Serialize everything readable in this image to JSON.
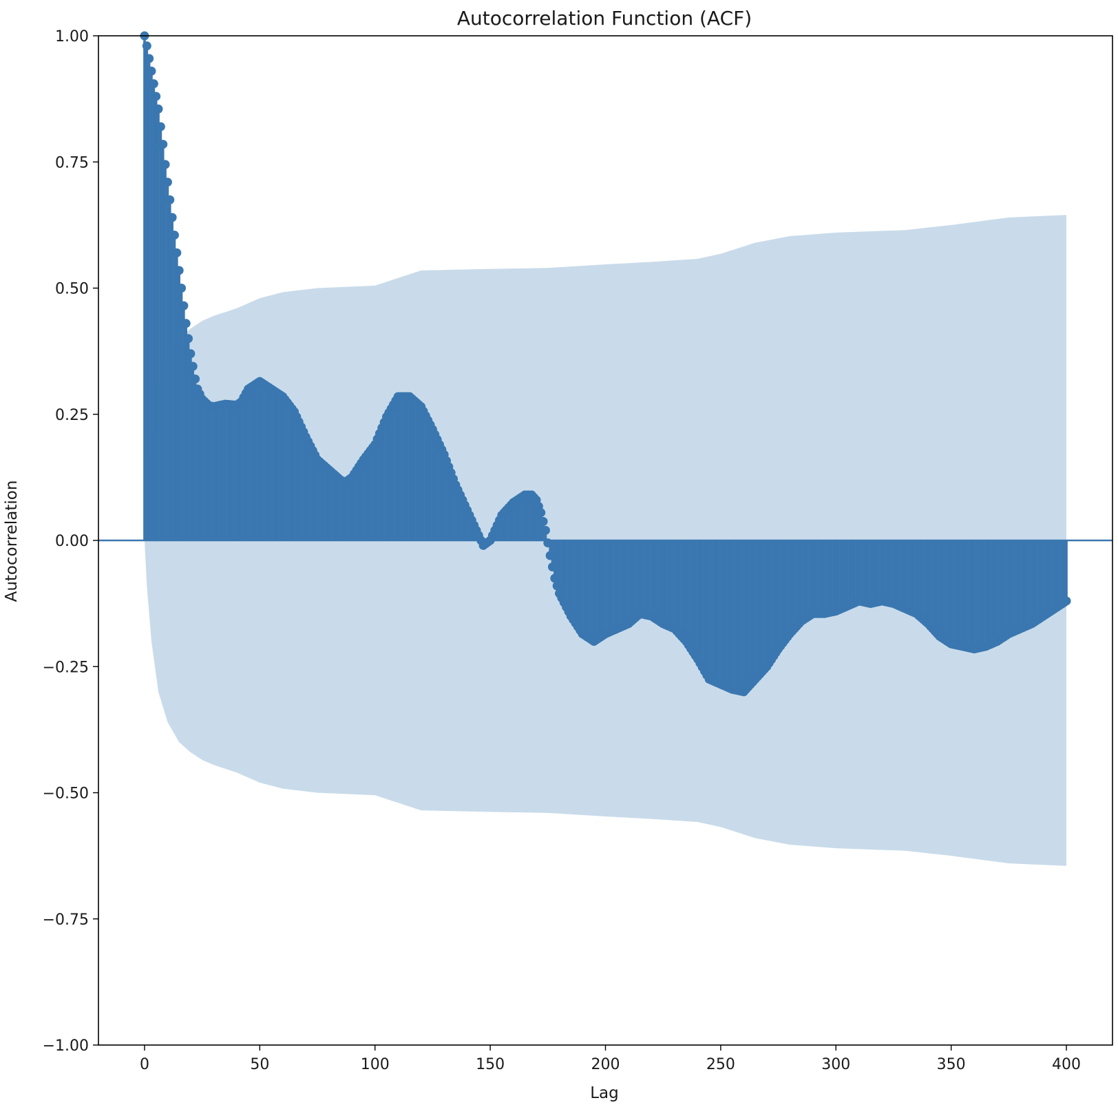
{
  "chart_data": {
    "type": "stem",
    "title": "Autocorrelation Function (ACF)",
    "xlabel": "Lag",
    "ylabel": "Autocorrelation",
    "xlim": [
      -20,
      420
    ],
    "ylim": [
      -1.0,
      1.0
    ],
    "xticks": [
      0,
      50,
      100,
      150,
      200,
      250,
      300,
      350,
      400
    ],
    "yticks": [
      1.0,
      0.75,
      0.5,
      0.25,
      0.0,
      -0.25,
      -0.5,
      -0.75,
      -1.0
    ],
    "xtick_labels": [
      "0",
      "50",
      "100",
      "150",
      "200",
      "250",
      "300",
      "350",
      "400"
    ],
    "ytick_labels": [
      "1.00",
      "0.75",
      "0.50",
      "0.25",
      "0.00",
      "−0.25",
      "−0.50",
      "−0.75",
      "−1.00"
    ],
    "grid": false,
    "colors": {
      "series": "#3a77b0",
      "band": "#c9dbea",
      "zero_line": "#3a77b0",
      "axes": "#000000"
    },
    "lags_range": [
      0,
      400
    ],
    "acf_knots": [
      [
        0,
        1.0
      ],
      [
        1,
        0.98
      ],
      [
        2,
        0.955
      ],
      [
        3,
        0.93
      ],
      [
        4,
        0.905
      ],
      [
        5,
        0.88
      ],
      [
        6,
        0.855
      ],
      [
        7,
        0.82
      ],
      [
        8,
        0.785
      ],
      [
        9,
        0.745
      ],
      [
        10,
        0.71
      ],
      [
        11,
        0.675
      ],
      [
        12,
        0.64
      ],
      [
        13,
        0.605
      ],
      [
        14,
        0.57
      ],
      [
        15,
        0.535
      ],
      [
        16,
        0.5
      ],
      [
        17,
        0.465
      ],
      [
        18,
        0.43
      ],
      [
        19,
        0.4
      ],
      [
        20,
        0.37
      ],
      [
        21,
        0.345
      ],
      [
        22,
        0.32
      ],
      [
        23,
        0.3
      ],
      [
        25,
        0.28
      ],
      [
        28,
        0.267
      ],
      [
        30,
        0.265
      ],
      [
        35,
        0.27
      ],
      [
        40,
        0.268
      ],
      [
        42,
        0.275
      ],
      [
        45,
        0.3
      ],
      [
        50,
        0.315
      ],
      [
        55,
        0.3
      ],
      [
        60,
        0.285
      ],
      [
        65,
        0.255
      ],
      [
        70,
        0.205
      ],
      [
        75,
        0.16
      ],
      [
        80,
        0.14
      ],
      [
        85,
        0.12
      ],
      [
        87,
        0.115
      ],
      [
        90,
        0.125
      ],
      [
        95,
        0.16
      ],
      [
        100,
        0.19
      ],
      [
        105,
        0.245
      ],
      [
        110,
        0.285
      ],
      [
        115,
        0.285
      ],
      [
        120,
        0.265
      ],
      [
        125,
        0.22
      ],
      [
        130,
        0.17
      ],
      [
        135,
        0.11
      ],
      [
        140,
        0.06
      ],
      [
        145,
        0.01
      ],
      [
        147,
        -0.01
      ],
      [
        150,
        0.0
      ],
      [
        155,
        0.05
      ],
      [
        160,
        0.075
      ],
      [
        165,
        0.09
      ],
      [
        168,
        0.09
      ],
      [
        170,
        0.08
      ],
      [
        172,
        0.055
      ],
      [
        174,
        0.02
      ],
      [
        176,
        -0.03
      ],
      [
        178,
        -0.075
      ],
      [
        180,
        -0.105
      ],
      [
        185,
        -0.15
      ],
      [
        190,
        -0.185
      ],
      [
        195,
        -0.2
      ],
      [
        200,
        -0.185
      ],
      [
        205,
        -0.175
      ],
      [
        210,
        -0.165
      ],
      [
        215,
        -0.145
      ],
      [
        220,
        -0.15
      ],
      [
        225,
        -0.165
      ],
      [
        230,
        -0.175
      ],
      [
        235,
        -0.2
      ],
      [
        240,
        -0.235
      ],
      [
        245,
        -0.275
      ],
      [
        250,
        -0.285
      ],
      [
        255,
        -0.295
      ],
      [
        260,
        -0.3
      ],
      [
        265,
        -0.275
      ],
      [
        270,
        -0.25
      ],
      [
        275,
        -0.215
      ],
      [
        280,
        -0.185
      ],
      [
        285,
        -0.16
      ],
      [
        290,
        -0.145
      ],
      [
        295,
        -0.145
      ],
      [
        300,
        -0.14
      ],
      [
        305,
        -0.13
      ],
      [
        310,
        -0.12
      ],
      [
        315,
        -0.125
      ],
      [
        320,
        -0.12
      ],
      [
        325,
        -0.125
      ],
      [
        330,
        -0.135
      ],
      [
        335,
        -0.145
      ],
      [
        340,
        -0.165
      ],
      [
        345,
        -0.19
      ],
      [
        350,
        -0.205
      ],
      [
        355,
        -0.21
      ],
      [
        360,
        -0.215
      ],
      [
        365,
        -0.21
      ],
      [
        370,
        -0.2
      ],
      [
        375,
        -0.185
      ],
      [
        380,
        -0.175
      ],
      [
        385,
        -0.165
      ],
      [
        390,
        -0.15
      ],
      [
        395,
        -0.135
      ],
      [
        400,
        -0.12
      ]
    ],
    "confidence_band_knots": [
      [
        0,
        0.0
      ],
      [
        1,
        0.09
      ],
      [
        3,
        0.2
      ],
      [
        6,
        0.3
      ],
      [
        10,
        0.36
      ],
      [
        15,
        0.4
      ],
      [
        20,
        0.42
      ],
      [
        25,
        0.435
      ],
      [
        30,
        0.445
      ],
      [
        40,
        0.46
      ],
      [
        50,
        0.48
      ],
      [
        60,
        0.492
      ],
      [
        75,
        0.5
      ],
      [
        100,
        0.505
      ],
      [
        110,
        0.52
      ],
      [
        120,
        0.535
      ],
      [
        150,
        0.538
      ],
      [
        175,
        0.54
      ],
      [
        200,
        0.547
      ],
      [
        220,
        0.552
      ],
      [
        240,
        0.558
      ],
      [
        250,
        0.568
      ],
      [
        265,
        0.59
      ],
      [
        280,
        0.603
      ],
      [
        300,
        0.61
      ],
      [
        330,
        0.615
      ],
      [
        350,
        0.625
      ],
      [
        375,
        0.64
      ],
      [
        400,
        0.645
      ]
    ]
  }
}
